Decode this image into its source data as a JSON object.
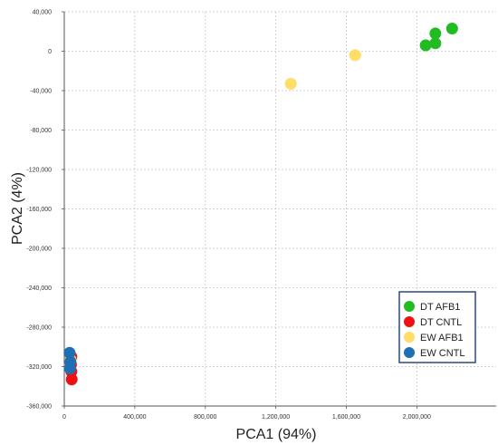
{
  "chart_data": {
    "type": "scatter",
    "xlabel": "PCA1 (94%)",
    "ylabel": "PCA2 (4%)",
    "xlim": [
      0,
      2450000
    ],
    "ylim": [
      -360000,
      40000
    ],
    "x_ticks": [
      0,
      400000,
      800000,
      1200000,
      1600000,
      2000000
    ],
    "x_tick_labels": [
      "0",
      "400,000",
      "800,000",
      "1,200,000",
      "1,600,000",
      "2,000,000"
    ],
    "y_ticks": [
      40000,
      0,
      -40000,
      -80000,
      -120000,
      -160000,
      -200000,
      -240000,
      -280000,
      -320000,
      -360000
    ],
    "y_tick_labels": [
      "40,000",
      "0",
      "-40,000",
      "-80,000",
      "-120,000",
      "-160,000",
      "-200,000",
      "-240,000",
      "-280,000",
      "-320,000",
      "-360,000"
    ],
    "grid": true,
    "legend_position": "bottom-right",
    "series": [
      {
        "name": "DT AFB1",
        "color": "#22bb22",
        "points": [
          [
            2050000,
            6000
          ],
          [
            2105000,
            8000
          ],
          [
            2105000,
            18000
          ],
          [
            2200000,
            23000
          ]
        ]
      },
      {
        "name": "DT CNTL",
        "color": "#ee1111",
        "points": [
          [
            40000,
            -310000
          ],
          [
            38000,
            -318000
          ],
          [
            40000,
            -325000
          ],
          [
            42000,
            -333000
          ]
        ]
      },
      {
        "name": "EW AFB1",
        "color": "#ffdd66",
        "points": [
          [
            1650000,
            -4000
          ],
          [
            1285000,
            -33000
          ],
          [
            35000,
            -313000
          ]
        ]
      },
      {
        "name": "EW CNTL",
        "color": "#1f6fb5",
        "points": [
          [
            30000,
            -306000
          ],
          [
            35000,
            -315000
          ],
          [
            32000,
            -322000
          ]
        ]
      }
    ]
  }
}
